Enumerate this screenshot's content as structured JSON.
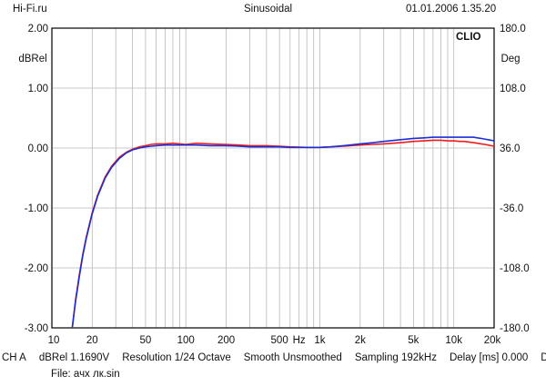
{
  "header": {
    "left": "Hi-Fi.ru",
    "center": "Sinusoidal",
    "right": "01.01.2006 1.35.20"
  },
  "footer": {
    "line1": [
      "CH A",
      "dBRel 1.1690V",
      "Resolution 1/24 Octave",
      "Smooth Unsmoothed",
      "Sampling 192kHz",
      "Delay [ms] 0.000",
      "Dist R"
    ],
    "line2": "File: ачх лк.sin"
  },
  "chart_data": {
    "type": "line",
    "logo": "CLIO",
    "xlabel": "Hz",
    "xscale": "log",
    "xlim": [
      10,
      20000
    ],
    "x_ticks": [
      10,
      20,
      50,
      100,
      200,
      500,
      1000,
      2000,
      5000,
      10000,
      20000
    ],
    "x_tick_labels": [
      "10",
      "20",
      "50",
      "100",
      "200",
      "500",
      "1k",
      "2k",
      "5k",
      "10k",
      "20k"
    ],
    "ylabel_left": "dBRel",
    "ylim_left": [
      -3,
      2
    ],
    "y_ticks_left": [
      "2.00",
      "1.00",
      "0.00",
      "-1.00",
      "-2.00",
      "-3.00"
    ],
    "ylabel_right": "Deg",
    "ylim_right": [
      -180,
      180
    ],
    "y_ticks_right": [
      "180.0",
      "108.0",
      "36.0",
      "-36.0",
      "-108.0",
      "-180.0"
    ],
    "grid": true,
    "series": [
      {
        "color": "#ee1c1c",
        "x": [
          14.2,
          15,
          16,
          17,
          18,
          20,
          22,
          25,
          28,
          32,
          36,
          40,
          45,
          50,
          55,
          60,
          70,
          80,
          100,
          120,
          150,
          200,
          250,
          300,
          400,
          500,
          600,
          800,
          1000,
          1200,
          1500,
          2000,
          2500,
          3000,
          4000,
          5000,
          6000,
          7000,
          8000,
          9000,
          10000,
          11000,
          12000,
          13000,
          14000,
          15000,
          16000,
          17000,
          18000,
          19000,
          20000
        ],
        "y": [
          -3.0,
          -2.55,
          -2.12,
          -1.78,
          -1.5,
          -1.08,
          -0.78,
          -0.48,
          -0.3,
          -0.15,
          -0.07,
          -0.02,
          0.02,
          0.04,
          0.06,
          0.07,
          0.07,
          0.08,
          0.06,
          0.08,
          0.07,
          0.06,
          0.05,
          0.04,
          0.04,
          0.03,
          0.02,
          0.01,
          0.01,
          0.02,
          0.03,
          0.05,
          0.06,
          0.07,
          0.09,
          0.11,
          0.12,
          0.13,
          0.13,
          0.12,
          0.12,
          0.11,
          0.11,
          0.1,
          0.09,
          0.08,
          0.07,
          0.06,
          0.05,
          0.04,
          0.03
        ]
      },
      {
        "color": "#1a2fd6",
        "x": [
          14.2,
          15,
          16,
          17,
          18,
          20,
          22,
          25,
          28,
          32,
          36,
          40,
          45,
          50,
          55,
          60,
          70,
          80,
          100,
          120,
          150,
          200,
          250,
          300,
          400,
          500,
          600,
          800,
          1000,
          1200,
          1500,
          2000,
          2500,
          3000,
          4000,
          5000,
          6000,
          7000,
          8000,
          9000,
          10000,
          11000,
          12000,
          13000,
          14000,
          15000,
          16000,
          17000,
          18000,
          19000,
          20000
        ],
        "y": [
          -3.0,
          -2.57,
          -2.15,
          -1.8,
          -1.52,
          -1.1,
          -0.8,
          -0.5,
          -0.32,
          -0.17,
          -0.08,
          -0.03,
          0.0,
          0.02,
          0.03,
          0.04,
          0.05,
          0.05,
          0.05,
          0.05,
          0.04,
          0.04,
          0.03,
          0.02,
          0.02,
          0.02,
          0.01,
          0.01,
          0.01,
          0.02,
          0.04,
          0.07,
          0.09,
          0.11,
          0.14,
          0.16,
          0.17,
          0.18,
          0.18,
          0.18,
          0.18,
          0.18,
          0.18,
          0.18,
          0.18,
          0.17,
          0.16,
          0.15,
          0.14,
          0.13,
          0.12
        ]
      }
    ]
  }
}
